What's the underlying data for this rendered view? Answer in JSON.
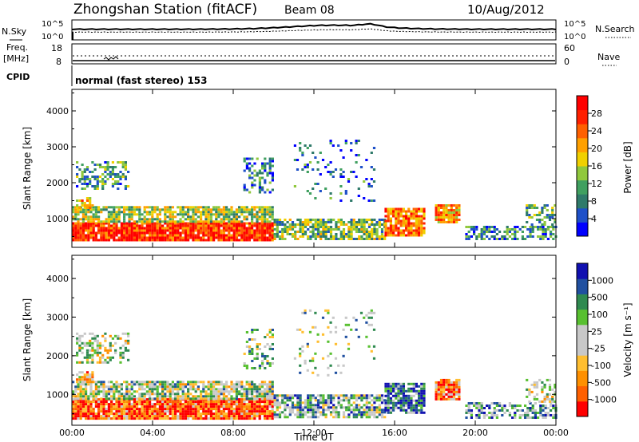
{
  "header": {
    "station": "Zhongshan Station (fitACF)",
    "beam": "Beam 08",
    "date": "10/Aug/2012"
  },
  "top_strip": {
    "left_labels": [
      "N.Sky",
      "Freq.",
      "[MHz]",
      "CPID"
    ],
    "nsky_ticks": [
      "10^5",
      "10^0"
    ],
    "nsearch_ticks": [
      "10^5",
      "10^0"
    ],
    "nsearch_label": "N.Search",
    "freq_ticks": [
      "18",
      "8"
    ],
    "nave_ticks": [
      "60",
      "0"
    ],
    "nave_label": "Nave",
    "cpid_text": "normal (fast stereo) 153"
  },
  "colors": {
    "power_scale": [
      "#0000ff",
      "#1e50c8",
      "#2f7a6a",
      "#40a060",
      "#90c83c",
      "#f0d000",
      "#ffa000",
      "#ff6000",
      "#ff2000",
      "#ff0000"
    ],
    "velocity_scale": [
      "#ff0000",
      "#ff6000",
      "#ff9000",
      "#ffbe30",
      "#c8c8c8",
      "#c8c8c8",
      "#58c030",
      "#2f8a50",
      "#2050a0",
      "#1010b0"
    ]
  },
  "chart_data": [
    {
      "type": "heatmap",
      "name": "power",
      "xlabel": "Time UT",
      "ylabel": "Slant Range [km]",
      "x_ticks": [
        "00:00",
        "04:00",
        "08:00",
        "12:00",
        "16:00",
        "20:00",
        "00:00"
      ],
      "xlim_hours": [
        0,
        24
      ],
      "y_ticks": [
        1000,
        2000,
        3000,
        4000
      ],
      "ylim": [
        200,
        4600
      ],
      "colorbar_label": "Power [dB]",
      "colorbar_ticks": [
        "4",
        "8",
        "12",
        "16",
        "20",
        "24",
        "28"
      ],
      "colorbar_range": [
        0,
        30
      ]
    },
    {
      "type": "heatmap",
      "name": "velocity",
      "xlabel": "Time UT",
      "ylabel": "Slant Range [km]",
      "x_ticks": [
        "00:00",
        "04:00",
        "08:00",
        "12:00",
        "16:00",
        "20:00",
        "00:00"
      ],
      "xlim_hours": [
        0,
        24
      ],
      "y_ticks": [
        1000,
        2000,
        3000,
        4000
      ],
      "ylim": [
        200,
        4600
      ],
      "colorbar_label": "Velocity [m s⁻¹]",
      "colorbar_ticks": [
        "-1000",
        "-500",
        "-100",
        "-25",
        "25",
        "100",
        "500",
        "1000"
      ]
    }
  ]
}
